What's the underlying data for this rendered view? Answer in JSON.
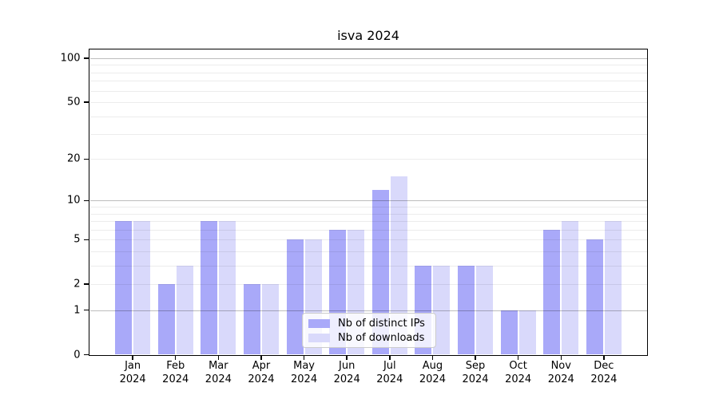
{
  "chart_data": {
    "type": "bar",
    "title": "isva 2024",
    "categories": [
      "Jan 2024",
      "Feb 2024",
      "Mar 2024",
      "Apr 2024",
      "May 2024",
      "Jun 2024",
      "Jul 2024",
      "Aug 2024",
      "Sep 2024",
      "Oct 2024",
      "Nov 2024",
      "Dec 2024"
    ],
    "series": [
      {
        "name": "Nb of distinct IPs",
        "color": "#a9a9f9",
        "values": [
          7,
          2,
          7,
          2,
          5,
          6,
          12,
          3,
          3,
          1,
          6,
          5
        ]
      },
      {
        "name": "Nb of downloads",
        "color": "#d9d9fb",
        "values": [
          7,
          3,
          7,
          2,
          5,
          6,
          15,
          3,
          3,
          1,
          7,
          7
        ]
      }
    ],
    "y_axis": {
      "tick_values": [
        0,
        1,
        2,
        5,
        10,
        20,
        50,
        100
      ],
      "scale": "log(1+x)",
      "min": 0,
      "max": 114
    },
    "grid": {
      "major_values": [
        1,
        10,
        100
      ],
      "minor_values": [
        2,
        3,
        4,
        5,
        6,
        7,
        8,
        9,
        20,
        30,
        40,
        50,
        60,
        70,
        80,
        90
      ]
    },
    "legend": {
      "position": "lower center",
      "entries": [
        "Nb of distinct IPs",
        "Nb of downloads"
      ]
    },
    "colors": {
      "bar_dark": "#a9a9f9",
      "bar_light": "#d9d9fb",
      "axis": "#000000",
      "legend_border": "#cccccc"
    }
  }
}
